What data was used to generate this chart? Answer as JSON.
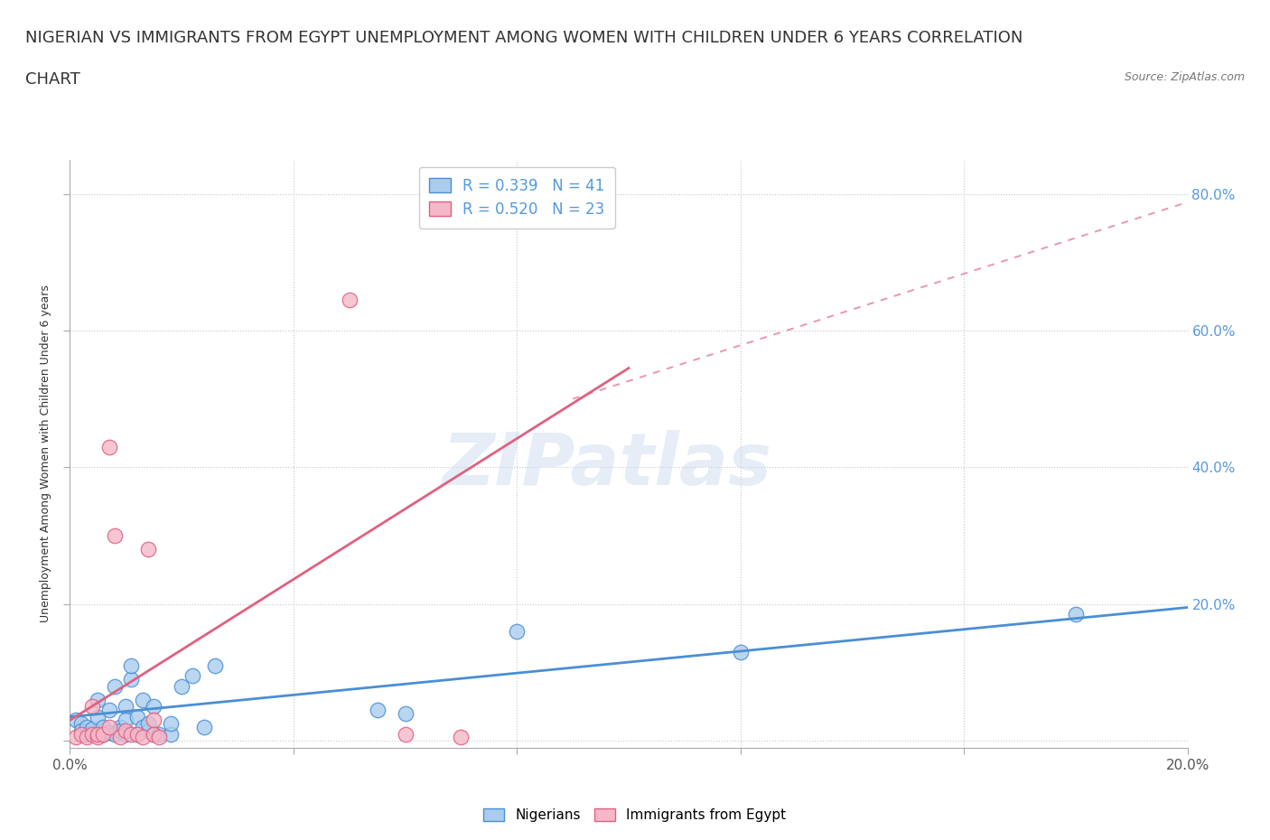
{
  "title_line1": "NIGERIAN VS IMMIGRANTS FROM EGYPT UNEMPLOYMENT AMONG WOMEN WITH CHILDREN UNDER 6 YEARS CORRELATION",
  "title_line2": "CHART",
  "source": "Source: ZipAtlas.com",
  "ylabel": "Unemployment Among Women with Children Under 6 years",
  "watermark": "ZIPatlas",
  "legend_entries": [
    {
      "label": "R = 0.339   N = 41"
    },
    {
      "label": "R = 0.520   N = 23"
    }
  ],
  "legend_bottom": [
    {
      "label": "Nigerians"
    },
    {
      "label": "Immigrants from Egypt"
    }
  ],
  "xlim": [
    0.0,
    0.2
  ],
  "ylim": [
    -0.01,
    0.85
  ],
  "yticks": [
    0.0,
    0.2,
    0.4,
    0.6,
    0.8
  ],
  "ytick_labels": [
    "",
    "20.0%",
    "40.0%",
    "60.0%",
    "80.0%"
  ],
  "xtick_positions": [
    0.0,
    0.04,
    0.08,
    0.12,
    0.16,
    0.2
  ],
  "xtick_labels": [
    "0.0%",
    "",
    "",
    "",
    "",
    "20.0%"
  ],
  "blue_scatter": [
    [
      0.001,
      0.03
    ],
    [
      0.002,
      0.025
    ],
    [
      0.002,
      0.015
    ],
    [
      0.003,
      0.02
    ],
    [
      0.003,
      0.01
    ],
    [
      0.004,
      0.018
    ],
    [
      0.005,
      0.06
    ],
    [
      0.005,
      0.035
    ],
    [
      0.006,
      0.01
    ],
    [
      0.006,
      0.02
    ],
    [
      0.007,
      0.012
    ],
    [
      0.007,
      0.045
    ],
    [
      0.008,
      0.01
    ],
    [
      0.008,
      0.08
    ],
    [
      0.009,
      0.02
    ],
    [
      0.009,
      0.015
    ],
    [
      0.01,
      0.05
    ],
    [
      0.01,
      0.03
    ],
    [
      0.01,
      0.01
    ],
    [
      0.011,
      0.09
    ],
    [
      0.011,
      0.11
    ],
    [
      0.012,
      0.01
    ],
    [
      0.012,
      0.035
    ],
    [
      0.013,
      0.02
    ],
    [
      0.013,
      0.06
    ],
    [
      0.014,
      0.015
    ],
    [
      0.014,
      0.025
    ],
    [
      0.015,
      0.05
    ],
    [
      0.015,
      0.01
    ],
    [
      0.016,
      0.01
    ],
    [
      0.018,
      0.01
    ],
    [
      0.018,
      0.025
    ],
    [
      0.02,
      0.08
    ],
    [
      0.022,
      0.095
    ],
    [
      0.024,
      0.02
    ],
    [
      0.026,
      0.11
    ],
    [
      0.06,
      0.04
    ],
    [
      0.08,
      0.16
    ],
    [
      0.12,
      0.13
    ],
    [
      0.18,
      0.185
    ],
    [
      0.055,
      0.045
    ]
  ],
  "pink_scatter": [
    [
      0.001,
      0.005
    ],
    [
      0.002,
      0.01
    ],
    [
      0.003,
      0.005
    ],
    [
      0.004,
      0.01
    ],
    [
      0.004,
      0.05
    ],
    [
      0.005,
      0.005
    ],
    [
      0.005,
      0.01
    ],
    [
      0.006,
      0.01
    ],
    [
      0.007,
      0.02
    ],
    [
      0.007,
      0.43
    ],
    [
      0.008,
      0.3
    ],
    [
      0.009,
      0.005
    ],
    [
      0.01,
      0.015
    ],
    [
      0.011,
      0.01
    ],
    [
      0.012,
      0.01
    ],
    [
      0.013,
      0.005
    ],
    [
      0.014,
      0.28
    ],
    [
      0.015,
      0.03
    ],
    [
      0.015,
      0.01
    ],
    [
      0.016,
      0.005
    ],
    [
      0.05,
      0.645
    ],
    [
      0.06,
      0.01
    ],
    [
      0.07,
      0.005
    ]
  ],
  "blue_line": {
    "x": [
      0.0,
      0.2
    ],
    "y": [
      0.035,
      0.195
    ]
  },
  "pink_line_solid": {
    "x": [
      0.0,
      0.1
    ],
    "y": [
      0.03,
      0.545
    ]
  },
  "pink_line_dash": {
    "x": [
      0.09,
      0.22
    ],
    "y": [
      0.5,
      0.84
    ]
  },
  "blue_color": "#4a8fd4",
  "pink_color": "#e06080",
  "blue_face": "#aaccee",
  "pink_face": "#f5b8c8",
  "grid_color": "#bbbbbb",
  "background_color": "#ffffff",
  "title_fontsize": 13,
  "axis_label_fontsize": 9,
  "tick_fontsize": 11,
  "right_tick_color": "#5599dd"
}
